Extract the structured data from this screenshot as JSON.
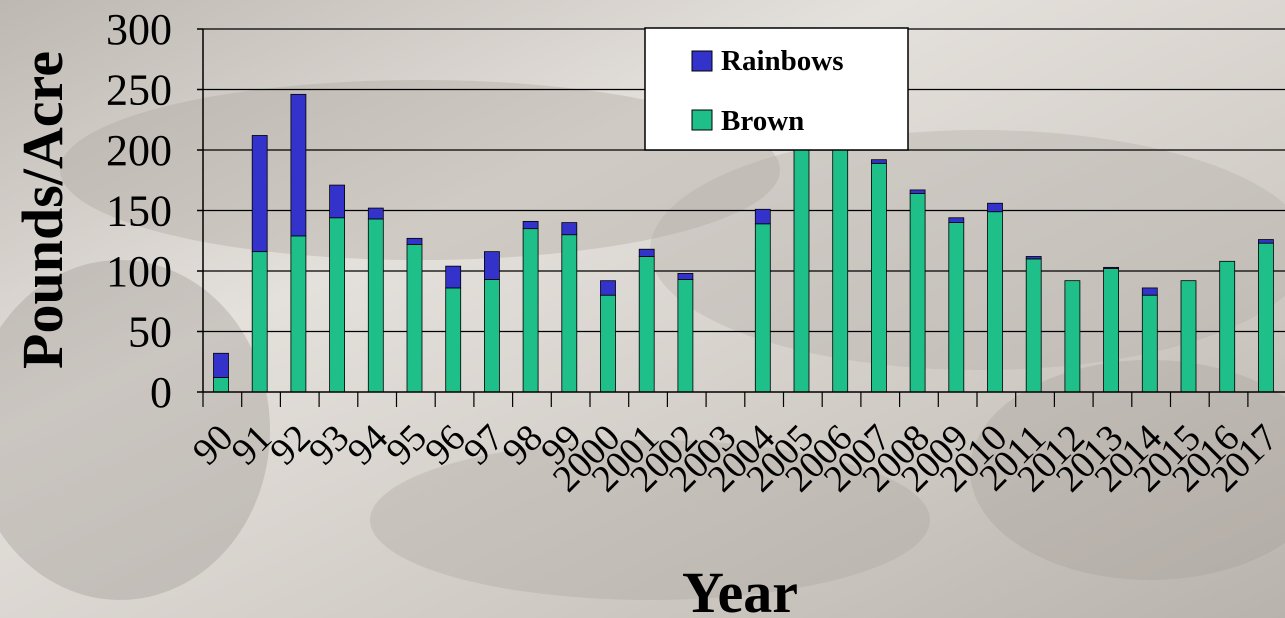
{
  "chart_data": {
    "type": "bar",
    "stacked": true,
    "xlabel": "Year",
    "ylabel": "Pounds/Acre",
    "ylim": [
      0,
      300
    ],
    "yticks": [
      0,
      50,
      100,
      150,
      200,
      250,
      300
    ],
    "grid": true,
    "legend_position": "top-center",
    "categories": [
      "90",
      "91",
      "92",
      "93",
      "94",
      "95",
      "96",
      "97",
      "98",
      "99",
      "2000",
      "2001",
      "2002",
      "2003",
      "2004",
      "2005",
      "2006",
      "2007",
      "2008",
      "2009",
      "2010",
      "2011",
      "2012",
      "2013",
      "2014",
      "2015",
      "2016",
      "2017"
    ],
    "series": [
      {
        "name": "Brown",
        "color": "#1fbf8a",
        "values": [
          12,
          116,
          129,
          144,
          143,
          122,
          86,
          93,
          135,
          130,
          80,
          112,
          93,
          null,
          139,
          204,
          204,
          189,
          164,
          140,
          149,
          110,
          92,
          102,
          80,
          92,
          108,
          123
        ]
      },
      {
        "name": "Rainbows",
        "color": "#3333cc",
        "values": [
          20,
          96,
          117,
          27,
          9,
          5,
          18,
          23,
          6,
          10,
          12,
          6,
          5,
          null,
          12,
          0,
          0,
          3,
          3,
          4,
          7,
          2,
          0,
          1,
          6,
          0,
          0,
          3
        ]
      }
    ]
  }
}
